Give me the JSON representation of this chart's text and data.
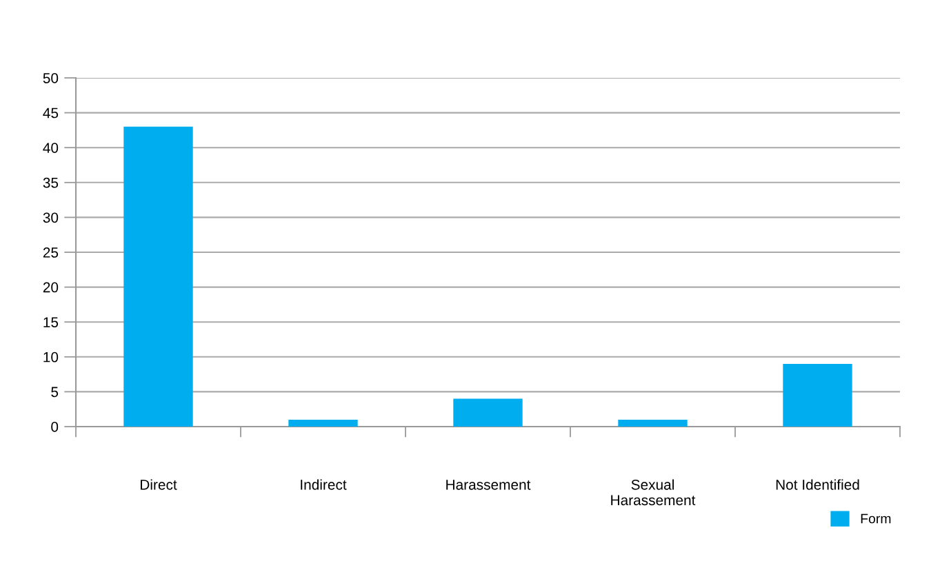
{
  "chart_data": {
    "type": "bar",
    "categories": [
      "Direct",
      "Indirect",
      "Harassement",
      "Sexual\nHarassement",
      "Not Identified"
    ],
    "series": [
      {
        "name": "Form",
        "color": "#00aeef",
        "values": [
          43,
          1,
          4,
          1,
          9
        ]
      }
    ],
    "ylim": [
      0,
      50
    ],
    "yticks": [
      0,
      5,
      10,
      15,
      20,
      25,
      30,
      35,
      40,
      45,
      50
    ],
    "grid": "y",
    "legend": "bottom right"
  }
}
